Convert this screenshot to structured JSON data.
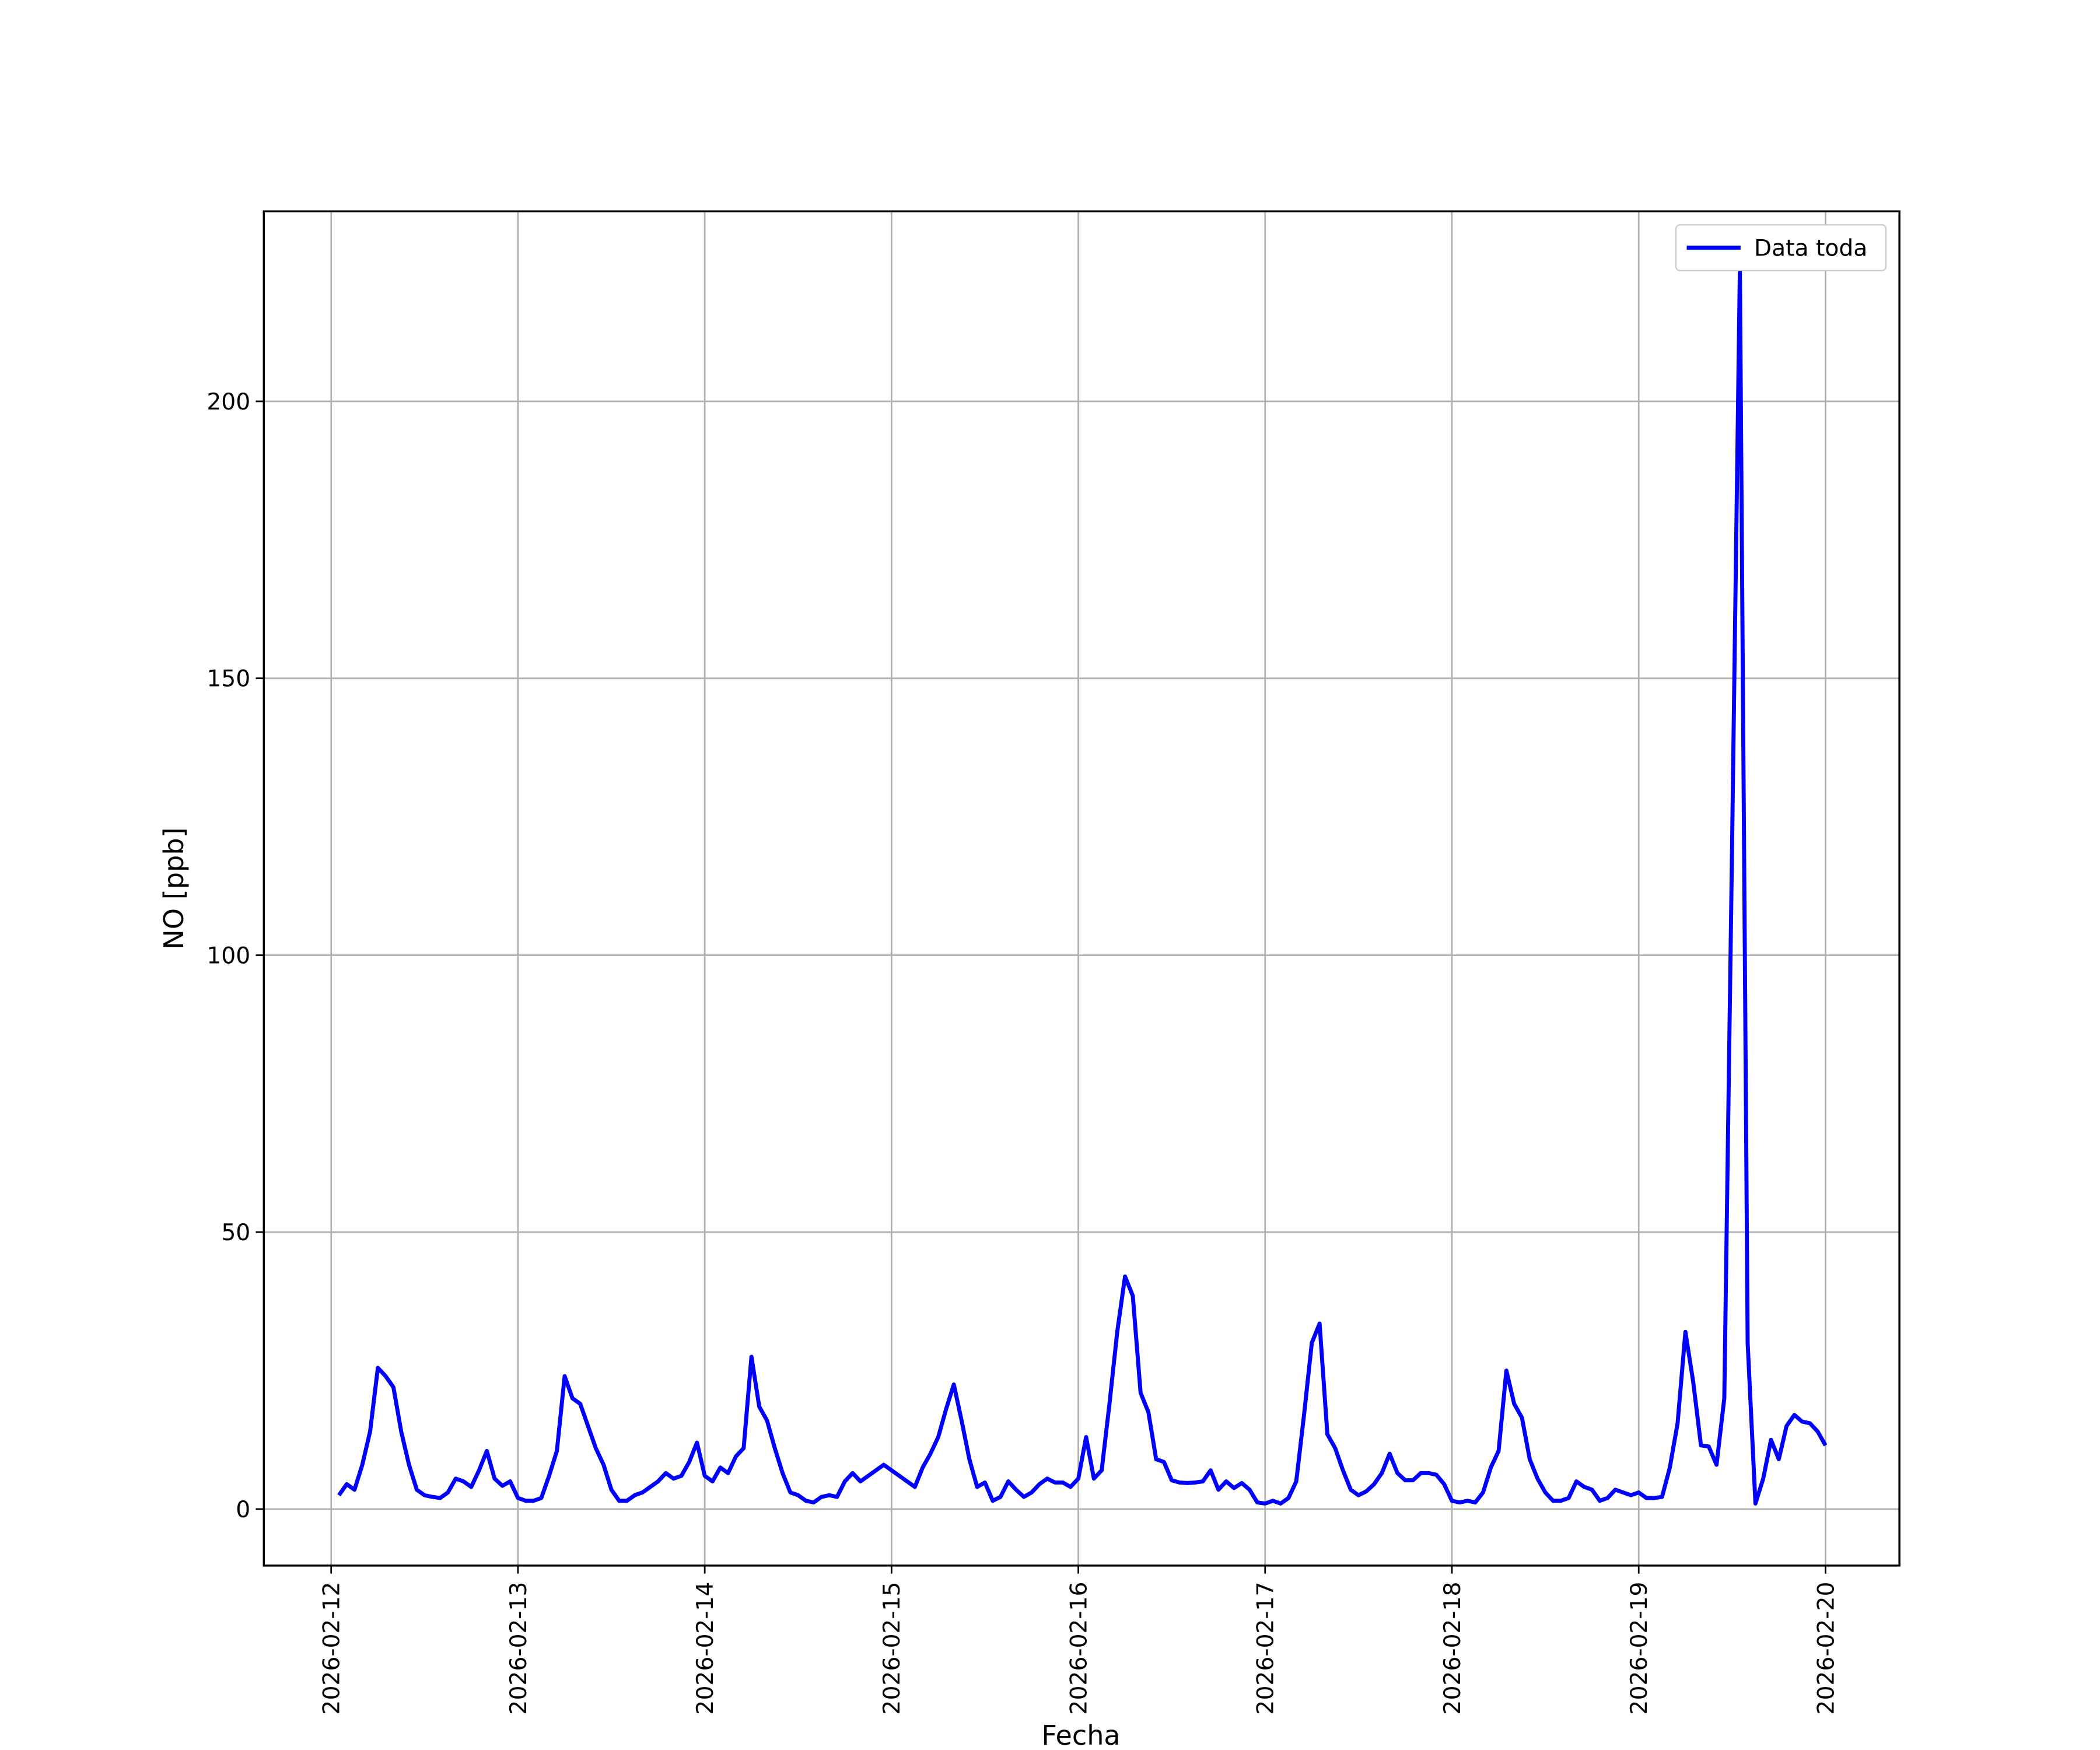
{
  "chart_data": {
    "type": "line",
    "x": [
      "2026-02-12T01:00",
      "2026-02-12T02:00",
      "2026-02-12T03:00",
      "2026-02-12T04:00",
      "2026-02-12T05:00",
      "2026-02-12T06:00",
      "2026-02-12T07:00",
      "2026-02-12T08:00",
      "2026-02-12T09:00",
      "2026-02-12T10:00",
      "2026-02-12T11:00",
      "2026-02-12T12:00",
      "2026-02-12T13:00",
      "2026-02-12T14:00",
      "2026-02-12T15:00",
      "2026-02-12T16:00",
      "2026-02-12T17:00",
      "2026-02-12T18:00",
      "2026-02-12T19:00",
      "2026-02-12T20:00",
      "2026-02-12T21:00",
      "2026-02-12T22:00",
      "2026-02-12T23:00",
      "2026-02-13T00:00",
      "2026-02-13T01:00",
      "2026-02-13T02:00",
      "2026-02-13T03:00",
      "2026-02-13T04:00",
      "2026-02-13T05:00",
      "2026-02-13T06:00",
      "2026-02-13T07:00",
      "2026-02-13T08:00",
      "2026-02-13T09:00",
      "2026-02-13T10:00",
      "2026-02-13T11:00",
      "2026-02-13T12:00",
      "2026-02-13T13:00",
      "2026-02-13T14:00",
      "2026-02-13T15:00",
      "2026-02-13T16:00",
      "2026-02-13T17:00",
      "2026-02-13T18:00",
      "2026-02-13T19:00",
      "2026-02-13T20:00",
      "2026-02-13T21:00",
      "2026-02-13T22:00",
      "2026-02-13T23:00",
      "2026-02-14T00:00",
      "2026-02-14T01:00",
      "2026-02-14T02:00",
      "2026-02-14T03:00",
      "2026-02-14T04:00",
      "2026-02-14T05:00",
      "2026-02-14T06:00",
      "2026-02-14T07:00",
      "2026-02-14T08:00",
      "2026-02-14T09:00",
      "2026-02-14T10:00",
      "2026-02-14T11:00",
      "2026-02-14T12:00",
      "2026-02-14T13:00",
      "2026-02-14T14:00",
      "2026-02-14T15:00",
      "2026-02-14T16:00",
      "2026-02-14T17:00",
      "2026-02-14T18:00",
      "2026-02-14T19:00",
      "2026-02-14T20:00",
      "2026-02-14T21:00",
      "2026-02-14T22:00",
      "2026-02-14T23:00",
      "2026-02-15T00:00",
      "2026-02-15T01:00",
      "2026-02-15T02:00",
      "2026-02-15T03:00",
      "2026-02-15T04:00",
      "2026-02-15T05:00",
      "2026-02-15T06:00",
      "2026-02-15T07:00",
      "2026-02-15T08:00",
      "2026-02-15T09:00",
      "2026-02-15T10:00",
      "2026-02-15T11:00",
      "2026-02-15T12:00",
      "2026-02-15T13:00",
      "2026-02-15T14:00",
      "2026-02-15T15:00",
      "2026-02-15T16:00",
      "2026-02-15T17:00",
      "2026-02-15T18:00",
      "2026-02-15T19:00",
      "2026-02-15T20:00",
      "2026-02-15T21:00",
      "2026-02-15T22:00",
      "2026-02-15T23:00",
      "2026-02-16T00:00",
      "2026-02-16T01:00",
      "2026-02-16T02:00",
      "2026-02-16T03:00",
      "2026-02-16T04:00",
      "2026-02-16T05:00",
      "2026-02-16T06:00",
      "2026-02-16T07:00",
      "2026-02-16T08:00",
      "2026-02-16T09:00",
      "2026-02-16T10:00",
      "2026-02-16T11:00",
      "2026-02-16T12:00",
      "2026-02-16T13:00",
      "2026-02-16T14:00",
      "2026-02-16T15:00",
      "2026-02-16T16:00",
      "2026-02-16T17:00",
      "2026-02-16T18:00",
      "2026-02-16T19:00",
      "2026-02-16T20:00",
      "2026-02-16T21:00",
      "2026-02-16T22:00",
      "2026-02-16T23:00",
      "2026-02-17T00:00",
      "2026-02-17T01:00",
      "2026-02-17T02:00",
      "2026-02-17T03:00",
      "2026-02-17T04:00",
      "2026-02-17T05:00",
      "2026-02-17T06:00",
      "2026-02-17T07:00",
      "2026-02-17T08:00",
      "2026-02-17T09:00",
      "2026-02-17T10:00",
      "2026-02-17T11:00",
      "2026-02-17T12:00",
      "2026-02-17T13:00",
      "2026-02-17T14:00",
      "2026-02-17T15:00",
      "2026-02-17T16:00",
      "2026-02-17T17:00",
      "2026-02-17T18:00",
      "2026-02-17T19:00",
      "2026-02-17T20:00",
      "2026-02-17T21:00",
      "2026-02-17T22:00",
      "2026-02-17T23:00",
      "2026-02-18T00:00",
      "2026-02-18T01:00",
      "2026-02-18T02:00",
      "2026-02-18T03:00",
      "2026-02-18T04:00",
      "2026-02-18T05:00",
      "2026-02-18T06:00",
      "2026-02-18T07:00",
      "2026-02-18T08:00",
      "2026-02-18T09:00",
      "2026-02-18T10:00",
      "2026-02-18T11:00",
      "2026-02-18T12:00",
      "2026-02-18T13:00",
      "2026-02-18T14:00",
      "2026-02-18T15:00",
      "2026-02-18T16:00",
      "2026-02-18T17:00",
      "2026-02-18T18:00",
      "2026-02-18T19:00",
      "2026-02-18T20:00",
      "2026-02-18T21:00",
      "2026-02-18T22:00",
      "2026-02-18T23:00",
      "2026-02-19T00:00",
      "2026-02-19T01:00",
      "2026-02-19T02:00",
      "2026-02-19T03:00",
      "2026-02-19T04:00",
      "2026-02-19T05:00",
      "2026-02-19T06:00",
      "2026-02-19T07:00",
      "2026-02-19T08:00",
      "2026-02-19T09:00",
      "2026-02-19T10:00",
      "2026-02-19T11:00",
      "2026-02-19T12:00",
      "2026-02-19T13:00",
      "2026-02-19T14:00",
      "2026-02-19T15:00",
      "2026-02-19T16:00",
      "2026-02-19T17:00",
      "2026-02-19T18:00",
      "2026-02-19T19:00",
      "2026-02-19T20:00",
      "2026-02-19T21:00",
      "2026-02-19T22:00",
      "2026-02-19T23:00",
      "2026-02-20T00:00"
    ],
    "series": [
      {
        "name": "Data toda",
        "color": "#0000ff",
        "values": [
          2.5,
          4.5,
          3.5,
          8,
          14,
          25.5,
          24,
          22,
          14,
          8,
          3.5,
          2.5,
          2.2,
          2,
          3,
          5.5,
          5,
          4,
          7,
          10.5,
          5.5,
          4.2,
          5,
          2,
          1.5,
          1.5,
          2,
          6,
          10.5,
          24,
          20,
          19,
          15,
          11,
          8,
          3.5,
          1.5,
          1.5,
          2.5,
          3,
          4,
          5,
          6.5,
          5.5,
          6,
          8.5,
          12,
          6,
          5,
          7.5,
          6.5,
          9.5,
          11,
          27.5,
          18.5,
          16,
          11,
          6.5,
          3,
          2.5,
          1.5,
          1.2,
          2.2,
          2.5,
          2.2,
          5,
          6.5,
          5,
          6,
          7,
          8,
          7,
          6,
          5,
          4,
          7.5,
          10,
          13,
          18,
          22.5,
          16,
          9,
          4,
          4.8,
          1.5,
          2.2,
          5,
          3.5,
          2.2,
          3,
          4.5,
          5.5,
          4.8,
          4.8,
          4,
          5.5,
          13,
          5.5,
          7,
          19,
          32,
          42,
          38.5,
          21,
          17.5,
          9,
          8.5,
          5.2,
          4.8,
          4.7,
          4.8,
          5,
          7,
          3.5,
          5,
          3.8,
          4.7,
          3.5,
          1.2,
          1,
          1.5,
          1,
          2,
          5,
          17,
          30,
          33.5,
          13.5,
          11,
          7,
          3.5,
          2.5,
          3.2,
          4.5,
          6.5,
          10,
          6.5,
          5.2,
          5.2,
          6.5,
          6.5,
          6.2,
          4.5,
          1.5,
          1.2,
          1.5,
          1.2,
          3,
          7.5,
          10.5,
          25,
          19,
          16.5,
          9,
          5.5,
          3,
          1.5,
          1.5,
          2,
          5,
          4,
          3.5,
          1.5,
          2,
          3.5,
          3,
          2.5,
          3,
          2,
          2,
          2.2,
          7.5,
          15.5,
          32,
          23,
          11.5,
          11.3,
          8,
          20,
          120,
          224,
          30,
          1,
          5.5,
          12.5,
          9,
          15,
          17,
          15.8,
          15.5,
          14,
          11.5
        ]
      }
    ],
    "xlabel": "Fecha",
    "ylabel": "NO [ppb]",
    "xlim": [
      "2026-02-11T15:21",
      "2026-02-20T09:30"
    ],
    "xticks": [
      "2026-02-12",
      "2026-02-13",
      "2026-02-14",
      "2026-02-15",
      "2026-02-16",
      "2026-02-17",
      "2026-02-18",
      "2026-02-19",
      "2026-02-20"
    ],
    "ylim": [
      -10.2,
      234.3
    ],
    "yticks": [
      0,
      50,
      100,
      150,
      200
    ],
    "grid": true,
    "legend": "upper right"
  }
}
